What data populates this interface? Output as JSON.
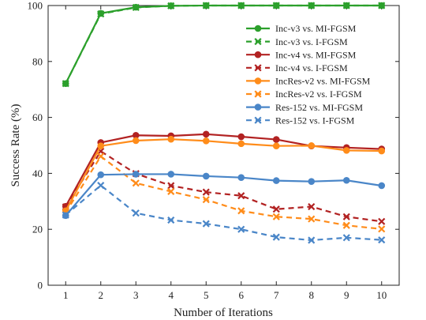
{
  "chart_data": {
    "type": "line",
    "title": "",
    "xlabel": "Number of Iterations",
    "ylabel": "Success Rate (%)",
    "x": [
      1,
      2,
      3,
      4,
      5,
      6,
      7,
      8,
      9,
      10
    ],
    "xlim": [
      0.5,
      10.5
    ],
    "ylim": [
      0,
      100
    ],
    "yticks": [
      0,
      20,
      40,
      60,
      80,
      100
    ],
    "grid": false,
    "legend_position": "top-right",
    "series": [
      {
        "name": "Inc-v3 vs. MI-FGSM",
        "color": "#2ca02c",
        "style": "solid",
        "marker": "circle",
        "values": [
          72.1,
          97.2,
          99.4,
          99.9,
          100.0,
          100.0,
          100.0,
          100.0,
          100.0,
          100.0
        ]
      },
      {
        "name": "Inc-v3 vs. I-FGSM",
        "color": "#2ca02c",
        "style": "dashed",
        "marker": "x",
        "values": [
          72.1,
          97.0,
          99.3,
          99.9,
          100.0,
          100.0,
          100.0,
          100.0,
          100.0,
          100.0
        ]
      },
      {
        "name": "Inc-v4 vs. MI-FGSM",
        "color": "#b22222",
        "style": "solid",
        "marker": "circle",
        "values": [
          28.2,
          51.0,
          53.6,
          53.4,
          54.0,
          53.1,
          52.1,
          49.8,
          49.2,
          48.7
        ]
      },
      {
        "name": "Inc-v4 vs. I-FGSM",
        "color": "#b22222",
        "style": "dashed",
        "marker": "x",
        "values": [
          28.0,
          47.9,
          39.9,
          35.6,
          33.3,
          32.0,
          27.2,
          28.1,
          24.5,
          22.8
        ]
      },
      {
        "name": "IncRes-v2 vs. MI-FGSM",
        "color": "#ff8c1a",
        "style": "solid",
        "marker": "circle",
        "values": [
          26.6,
          49.8,
          51.7,
          52.2,
          51.6,
          50.6,
          49.8,
          49.9,
          48.2,
          48.0
        ]
      },
      {
        "name": "IncRes-v2 vs. I-FGSM",
        "color": "#ff8c1a",
        "style": "dashed",
        "marker": "x",
        "values": [
          26.0,
          46.1,
          36.5,
          33.5,
          30.6,
          26.6,
          24.5,
          23.7,
          21.4,
          20.1
        ]
      },
      {
        "name": "Res-152 vs. MI-FGSM",
        "color": "#4a86c8",
        "style": "solid",
        "marker": "circle",
        "values": [
          24.9,
          39.5,
          39.7,
          39.7,
          39.0,
          38.5,
          37.4,
          37.1,
          37.5,
          35.6
        ]
      },
      {
        "name": "Res-152 vs. I-FGSM",
        "color": "#4a86c8",
        "style": "dashed",
        "marker": "x",
        "values": [
          25.1,
          35.7,
          25.8,
          23.3,
          22.0,
          20.0,
          17.2,
          16.1,
          17.0,
          16.2
        ]
      }
    ]
  }
}
